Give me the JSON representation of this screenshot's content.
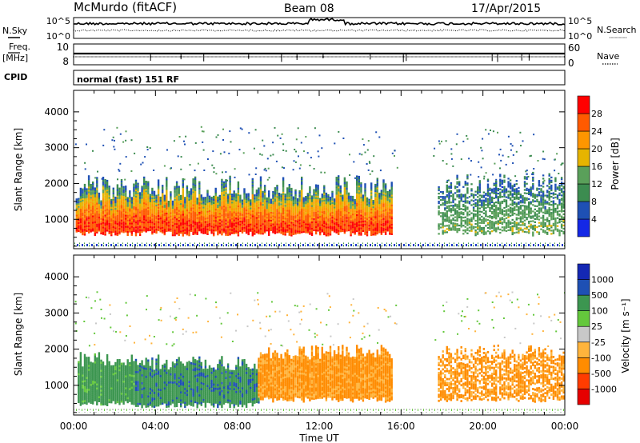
{
  "header": {
    "station": "McMurdo (fitACF)",
    "beam": "Beam 08",
    "date": "17/Apr/2015"
  },
  "summary_panels": {
    "nsky_label": "N.Sky",
    "nsky_ticks": [
      "10^5",
      "10^0"
    ],
    "nsearch_label": "N.Search",
    "nsearch_ticks": [
      "10^5",
      "10^0"
    ],
    "freq_label": "Freq.",
    "freq_unit": "[MHz]",
    "freq_ticks": [
      "10",
      "8"
    ],
    "nave_label": "Nave",
    "nave_ticks": [
      "60",
      "0"
    ],
    "cpid_label": "CPID",
    "cpid_text": "normal (fast) 151 RF"
  },
  "colors": {
    "power_scale": [
      "#1428e6",
      "#1e50b4",
      "#3c8c50",
      "#5aa05a",
      "#e6b400",
      "#ff9600",
      "#ff5a00",
      "#ff0000"
    ],
    "velocity_scale": [
      "#e60000",
      "#ff3c00",
      "#ff8c00",
      "#ffb43c",
      "#c8c8c8",
      "#64c83c",
      "#3c9650",
      "#1e50b4",
      "#1428b4"
    ]
  },
  "chart_data": [
    {
      "type": "heatmap",
      "panel": "power",
      "xlabel": "",
      "ylabel": "Slant Range [km]",
      "xlim": [
        "00:00",
        "24:00"
      ],
      "ylim": [
        180,
        4600
      ],
      "y_ticks": [
        "4000",
        "3000",
        "2000",
        "1000"
      ],
      "colorbar": {
        "label": "Power [dB]",
        "ticks": [
          "28",
          "24",
          "20",
          "16",
          "12",
          "8",
          "4"
        ],
        "range": [
          0,
          32
        ]
      },
      "bands": [
        {
          "t_start": 0.1,
          "t_end": 15.5,
          "lower_km": 600,
          "upper_km": 2000,
          "typical_power_db": 28
        },
        {
          "t_start": 17.8,
          "t_end": 24.0,
          "lower_km": 600,
          "upper_km": 2100,
          "typical_power_db": 14
        }
      ]
    },
    {
      "type": "heatmap",
      "panel": "velocity",
      "xlabel": "Time UT",
      "ylabel": "Slant Range [km]",
      "xlim": [
        "00:00",
        "24:00"
      ],
      "ylim": [
        180,
        4600
      ],
      "x_ticks": [
        "00:00",
        "04:00",
        "08:00",
        "12:00",
        "16:00",
        "20:00",
        "00:00"
      ],
      "y_ticks": [
        "4000",
        "3000",
        "2000",
        "1000"
      ],
      "colorbar": {
        "label": "Velocity [m s⁻¹]",
        "ticks": [
          "1000",
          "500",
          "100",
          "25",
          "-25",
          "-100",
          "-500",
          "-1000"
        ]
      },
      "segments": [
        {
          "t_start": 0.2,
          "t_end": 3.0,
          "lower_km": 500,
          "upper_km": 1800,
          "typical_velocity_ms": 200
        },
        {
          "t_start": 3.0,
          "t_end": 9.0,
          "lower_km": 450,
          "upper_km": 1700,
          "typical_velocity_ms": 400
        },
        {
          "t_start": 9.0,
          "t_end": 15.5,
          "lower_km": 600,
          "upper_km": 2000,
          "typical_velocity_ms": -150
        },
        {
          "t_start": 17.8,
          "t_end": 24.0,
          "lower_km": 600,
          "upper_km": 2000,
          "typical_velocity_ms": -150
        }
      ]
    }
  ]
}
